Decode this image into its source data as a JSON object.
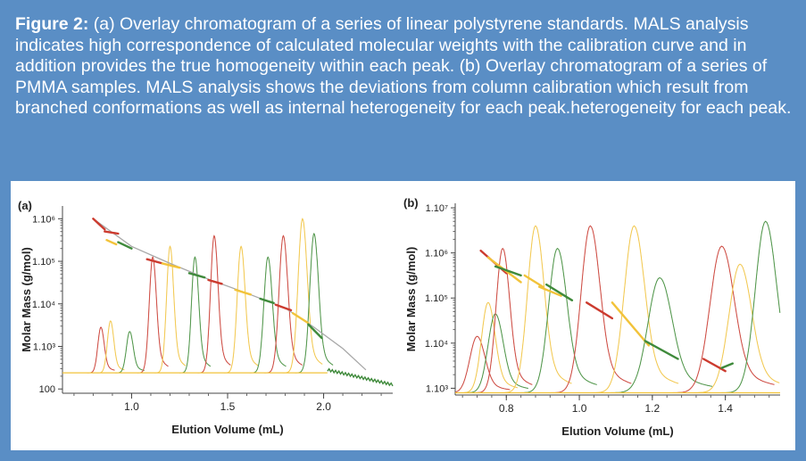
{
  "caption": {
    "label": "Figure 2:",
    "text": "(a) Overlay chromatogram of a series of linear polystyrene standards. MALS analysis indicates high correspondence of calculated molecular weights with the calibration curve and in addition provides the true homogeneity within each peak. (b) Overlay chromatogram of a series of PMMA samples. MALS analysis shows the deviations from column calibration which result from branched conformations as well as internal heterogeneity for each peak.heterogeneity for each peak."
  },
  "colors": {
    "frame": "#5a8ec5",
    "red": "#cc3b2f",
    "green": "#3f8a3b",
    "yellow": "#f2c33a",
    "pink": "#d98a88",
    "lightyellow": "#f4dc9a",
    "lightgreen": "#8fbf88"
  },
  "chart_data": [
    {
      "type": "line",
      "panel_label": "(a)",
      "xlabel": "Elution Volume (mL)",
      "ylabel": "Molar Mass (g/mol)",
      "xlim": [
        0.64,
        2.36
      ],
      "xticks": [
        1.0,
        1.5,
        2.0
      ],
      "xtick_labels": [
        "1.0",
        "1.5",
        "2.0"
      ],
      "ylim_log10": [
        1.9,
        6.3
      ],
      "yticks": [
        {
          "log": 2,
          "label": "100"
        },
        {
          "log": 3,
          "label": "1.10³"
        },
        {
          "log": 4,
          "label": "1.10⁴"
        },
        {
          "log": 5,
          "label": "1.10⁵"
        },
        {
          "log": 6,
          "label": "1.10⁶"
        }
      ],
      "baseline_log10": 2.38,
      "chromatogram_peaks": [
        {
          "center": 0.84,
          "height_log10": 3.45,
          "width": 0.016,
          "color": "red"
        },
        {
          "center": 0.89,
          "height_log10": 3.6,
          "width": 0.016,
          "color": "yellow"
        },
        {
          "center": 0.99,
          "height_log10": 3.35,
          "width": 0.017,
          "color": "green"
        },
        {
          "center": 1.11,
          "height_log10": 5.1,
          "width": 0.018,
          "color": "red"
        },
        {
          "center": 1.2,
          "height_log10": 5.35,
          "width": 0.018,
          "color": "yellow"
        },
        {
          "center": 1.33,
          "height_log10": 5.1,
          "width": 0.018,
          "color": "green"
        },
        {
          "center": 1.43,
          "height_log10": 5.6,
          "width": 0.019,
          "color": "red"
        },
        {
          "center": 1.57,
          "height_log10": 5.35,
          "width": 0.02,
          "color": "yellow"
        },
        {
          "center": 1.71,
          "height_log10": 5.1,
          "width": 0.021,
          "color": "green"
        },
        {
          "center": 1.79,
          "height_log10": 5.6,
          "width": 0.022,
          "color": "red"
        },
        {
          "center": 1.89,
          "height_log10": 6.0,
          "width": 0.023,
          "color": "yellow"
        },
        {
          "center": 1.95,
          "height_log10": 5.65,
          "width": 0.022,
          "color": "green"
        }
      ],
      "calibration_curve": {
        "x": [
          0.8,
          1.0,
          1.2,
          1.4,
          1.6,
          1.8,
          1.95,
          2.1,
          2.22
        ],
        "log_mass": [
          6.0,
          5.35,
          4.95,
          4.58,
          4.25,
          3.9,
          3.45,
          2.95,
          2.45
        ]
      },
      "mals_segments": [
        {
          "x": [
            0.8,
            0.86
          ],
          "log_mass": [
            6.0,
            5.75
          ],
          "color": "red"
        },
        {
          "x": [
            0.86,
            0.93
          ],
          "log_mass": [
            5.7,
            5.65
          ],
          "color": "red"
        },
        {
          "x": [
            0.87,
            0.92
          ],
          "log_mass": [
            5.5,
            5.4
          ],
          "color": "yellow"
        },
        {
          "x": [
            0.93,
            1.0
          ],
          "log_mass": [
            5.45,
            5.3
          ],
          "color": "green"
        },
        {
          "x": [
            1.08,
            1.16
          ],
          "log_mass": [
            5.05,
            4.95
          ],
          "color": "red"
        },
        {
          "x": [
            1.16,
            1.25
          ],
          "log_mass": [
            4.95,
            4.85
          ],
          "color": "yellow"
        },
        {
          "x": [
            1.3,
            1.38
          ],
          "log_mass": [
            4.72,
            4.62
          ],
          "color": "green"
        },
        {
          "x": [
            1.4,
            1.47
          ],
          "log_mass": [
            4.56,
            4.47
          ],
          "color": "red"
        },
        {
          "x": [
            1.54,
            1.62
          ],
          "log_mass": [
            4.33,
            4.22
          ],
          "color": "yellow"
        },
        {
          "x": [
            1.67,
            1.74
          ],
          "log_mass": [
            4.12,
            4.02
          ],
          "color": "green"
        },
        {
          "x": [
            1.75,
            1.83
          ],
          "log_mass": [
            3.98,
            3.85
          ],
          "color": "red"
        },
        {
          "x": [
            1.84,
            1.92
          ],
          "log_mass": [
            3.78,
            3.55
          ],
          "color": "yellow"
        },
        {
          "x": [
            1.92,
            1.99
          ],
          "log_mass": [
            3.52,
            3.2
          ],
          "color": "green"
        }
      ],
      "tail": {
        "x": [
          2.02,
          2.36
        ],
        "log_mass": [
          2.45,
          2.1
        ]
      }
    },
    {
      "type": "line",
      "panel_label": "(b)",
      "xlabel": "Elution Volume (mL)",
      "ylabel": "Molar Mass (g/mol)",
      "xlim": [
        0.66,
        1.55
      ],
      "xticks": [
        0.8,
        1.0,
        1.2,
        1.4
      ],
      "xtick_labels": [
        "0.8",
        "1.0",
        "1.2",
        "1.4"
      ],
      "ylim_log10": [
        2.85,
        7.1
      ],
      "yticks": [
        {
          "log": 3,
          "label": "1.10³"
        },
        {
          "log": 4,
          "label": "1.10⁴"
        },
        {
          "log": 5,
          "label": "1.10⁵"
        },
        {
          "log": 6,
          "label": "1.10⁶"
        },
        {
          "log": 7,
          "label": "1.10⁷"
        }
      ],
      "baseline_log10": 2.9,
      "chromatogram_peaks": [
        {
          "center": 0.72,
          "height_log10": 4.15,
          "width": 0.02,
          "color": "red"
        },
        {
          "center": 0.75,
          "height_log10": 4.9,
          "width": 0.018,
          "color": "yellow"
        },
        {
          "center": 0.77,
          "height_log10": 4.65,
          "width": 0.02,
          "color": "green"
        },
        {
          "center": 0.79,
          "height_log10": 6.1,
          "width": 0.018,
          "color": "red"
        },
        {
          "center": 0.88,
          "height_log10": 6.6,
          "width": 0.022,
          "color": "yellow"
        },
        {
          "center": 0.94,
          "height_log10": 6.1,
          "width": 0.024,
          "color": "green"
        },
        {
          "center": 1.03,
          "height_log10": 6.6,
          "width": 0.025,
          "color": "red"
        },
        {
          "center": 1.15,
          "height_log10": 6.6,
          "width": 0.027,
          "color": "yellow"
        },
        {
          "center": 1.22,
          "height_log10": 5.45,
          "width": 0.032,
          "color": "green"
        },
        {
          "center": 1.39,
          "height_log10": 6.15,
          "width": 0.032,
          "color": "red"
        },
        {
          "center": 1.44,
          "height_log10": 5.75,
          "width": 0.03,
          "color": "yellow"
        },
        {
          "center": 1.51,
          "height_log10": 6.7,
          "width": 0.028,
          "color": "green"
        }
      ],
      "mals_segments": [
        {
          "x": [
            0.73,
            0.8
          ],
          "log_mass": [
            6.05,
            5.55
          ],
          "color": "red"
        },
        {
          "x": [
            0.75,
            0.84
          ],
          "log_mass": [
            5.9,
            5.35
          ],
          "color": "yellow"
        },
        {
          "x": [
            0.77,
            0.84
          ],
          "log_mass": [
            5.7,
            5.5
          ],
          "color": "green"
        },
        {
          "x": [
            0.85,
            0.9
          ],
          "log_mass": [
            5.5,
            5.25
          ],
          "color": "yellow"
        },
        {
          "x": [
            0.89,
            0.95
          ],
          "log_mass": [
            5.25,
            5.05
          ],
          "color": "yellow"
        },
        {
          "x": [
            0.91,
            0.98
          ],
          "log_mass": [
            5.3,
            4.95
          ],
          "color": "green"
        },
        {
          "x": [
            1.02,
            1.09
          ],
          "log_mass": [
            4.9,
            4.55
          ],
          "color": "red"
        },
        {
          "x": [
            1.09,
            1.19
          ],
          "log_mass": [
            4.9,
            3.95
          ],
          "color": "yellow"
        },
        {
          "x": [
            1.18,
            1.27
          ],
          "log_mass": [
            4.05,
            3.65
          ],
          "color": "green"
        },
        {
          "x": [
            1.34,
            1.4
          ],
          "log_mass": [
            3.65,
            3.38
          ],
          "color": "red"
        },
        {
          "x": [
            1.39,
            1.42
          ],
          "log_mass": [
            3.45,
            3.55
          ],
          "color": "green"
        }
      ]
    }
  ]
}
